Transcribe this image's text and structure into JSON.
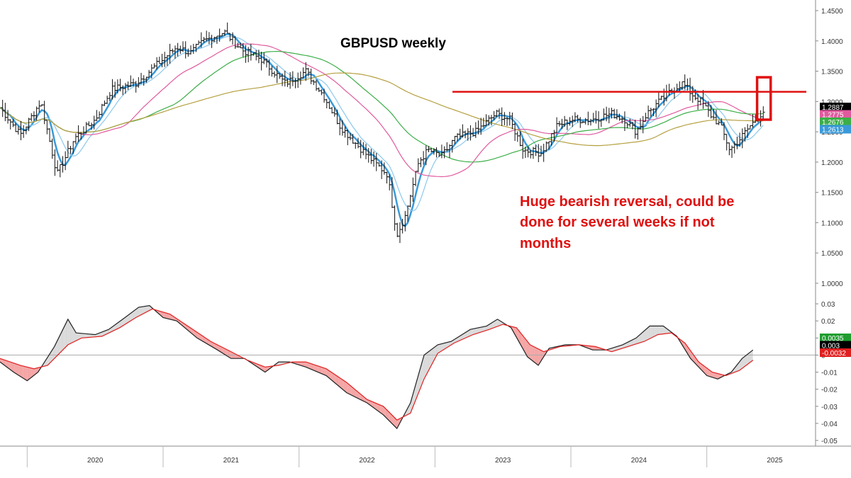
{
  "chart_data": [
    {
      "type": "ohlc",
      "title": "GBPUSD weekly",
      "annotation": {
        "lines": [
          "Huge bearish reversal, could be",
          "done for several weeks if not",
          "months"
        ],
        "color": "#e01010"
      },
      "ylim": [
        1.0,
        1.45
      ],
      "y_ticks": [
        "1.4500",
        "1.4000",
        "1.3500",
        "1.3000",
        "1.2500",
        "1.2000",
        "1.1500",
        "1.1000",
        "1.0500",
        "1.0000"
      ],
      "x_labels": [
        "2020",
        "2021",
        "2022",
        "2023",
        "2024",
        "2025"
      ],
      "price_path": [
        [
          2019.8,
          1.29
        ],
        [
          2019.95,
          1.245
        ],
        [
          2020.1,
          1.3
        ],
        [
          2020.22,
          1.18
        ],
        [
          2020.35,
          1.24
        ],
        [
          2020.5,
          1.27
        ],
        [
          2020.62,
          1.32
        ],
        [
          2020.8,
          1.33
        ],
        [
          2020.95,
          1.36
        ],
        [
          2021.1,
          1.39
        ],
        [
          2021.2,
          1.38
        ],
        [
          2021.3,
          1.4
        ],
        [
          2021.45,
          1.415
        ],
        [
          2021.58,
          1.385
        ],
        [
          2021.72,
          1.37
        ],
        [
          2021.9,
          1.33
        ],
        [
          2022.05,
          1.35
        ],
        [
          2022.18,
          1.31
        ],
        [
          2022.3,
          1.26
        ],
        [
          2022.42,
          1.23
        ],
        [
          2022.55,
          1.2
        ],
        [
          2022.65,
          1.18
        ],
        [
          2022.72,
          1.08
        ],
        [
          2022.78,
          1.11
        ],
        [
          2022.88,
          1.2
        ],
        [
          2022.95,
          1.22
        ],
        [
          2023.05,
          1.21
        ],
        [
          2023.15,
          1.24
        ],
        [
          2023.3,
          1.25
        ],
        [
          2023.45,
          1.28
        ],
        [
          2023.55,
          1.27
        ],
        [
          2023.65,
          1.22
        ],
        [
          2023.78,
          1.215
        ],
        [
          2023.9,
          1.26
        ],
        [
          2024.0,
          1.27
        ],
        [
          2024.15,
          1.27
        ],
        [
          2024.3,
          1.28
        ],
        [
          2024.4,
          1.27
        ],
        [
          2024.48,
          1.25
        ],
        [
          2024.56,
          1.28
        ],
        [
          2024.65,
          1.3
        ],
        [
          2024.75,
          1.32
        ],
        [
          2024.82,
          1.33
        ],
        [
          2024.9,
          1.31
        ],
        [
          2024.96,
          1.3
        ],
        [
          2025.02,
          1.28
        ],
        [
          2025.1,
          1.26
        ],
        [
          2025.17,
          1.22
        ],
        [
          2025.25,
          1.24
        ],
        [
          2025.32,
          1.26
        ],
        [
          2025.42,
          1.285
        ]
      ],
      "resistance_level": 1.316,
      "highlight_box": {
        "x_from": 2025.37,
        "x_to": 2025.47,
        "y_from": 1.27,
        "y_to": 1.34
      },
      "moving_averages": [
        {
          "color": "#3a9ad9",
          "period_weeks": 5
        },
        {
          "color": "#8cc8ec",
          "period_weeks": 10
        },
        {
          "color": "#e05a9e",
          "period_weeks": 30
        },
        {
          "color": "#3cae48",
          "period_weeks": 50
        },
        {
          "color": "#b5a040",
          "period_weeks": 100
        }
      ],
      "price_badges": [
        {
          "text": "1.2887",
          "bg": "#000000",
          "fg": "#ffffff"
        },
        {
          "text": "1.2775",
          "bg": "#e05a9e",
          "fg": "#ffffff"
        },
        {
          "text": "1.2676",
          "bg": "#3cae48",
          "fg": "#ffffff"
        },
        {
          "text": "1.2613",
          "bg": "#3a9ad9",
          "fg": "#ffffff"
        }
      ]
    },
    {
      "type": "line",
      "ylim": [
        -0.05,
        0.035
      ],
      "y_ticks": [
        "0.03",
        "0.02",
        "0.01",
        "0",
        "-0.01",
        "-0.02",
        "-0.03",
        "-0.04",
        "-0.05"
      ],
      "zero_line": true,
      "series": [
        {
          "color": "#222222",
          "values": [
            [
              2019.8,
              -0.004
            ],
            [
              2019.9,
              -0.01
            ],
            [
              2020.0,
              -0.015
            ],
            [
              2020.08,
              -0.01
            ],
            [
              2020.2,
              0.005
            ],
            [
              2020.3,
              0.021
            ],
            [
              2020.36,
              0.013
            ],
            [
              2020.5,
              0.012
            ],
            [
              2020.6,
              0.015
            ],
            [
              2020.72,
              0.022
            ],
            [
              2020.82,
              0.028
            ],
            [
              2020.9,
              0.029
            ],
            [
              2021.0,
              0.022
            ],
            [
              2021.1,
              0.02
            ],
            [
              2021.25,
              0.01
            ],
            [
              2021.4,
              0.003
            ],
            [
              2021.5,
              -0.002
            ],
            [
              2021.6,
              -0.002
            ],
            [
              2021.75,
              -0.01
            ],
            [
              2021.85,
              -0.004
            ],
            [
              2021.93,
              -0.004
            ],
            [
              2022.05,
              -0.007
            ],
            [
              2022.2,
              -0.012
            ],
            [
              2022.35,
              -0.022
            ],
            [
              2022.5,
              -0.028
            ],
            [
              2022.62,
              -0.035
            ],
            [
              2022.72,
              -0.043
            ],
            [
              2022.82,
              -0.028
            ],
            [
              2022.92,
              0.0
            ],
            [
              2023.02,
              0.006
            ],
            [
              2023.12,
              0.008
            ],
            [
              2023.26,
              0.015
            ],
            [
              2023.38,
              0.017
            ],
            [
              2023.46,
              0.021
            ],
            [
              2023.56,
              0.016
            ],
            [
              2023.68,
              -0.001
            ],
            [
              2023.76,
              -0.006
            ],
            [
              2023.84,
              0.004
            ],
            [
              2023.96,
              0.006
            ],
            [
              2024.06,
              0.006
            ],
            [
              2024.16,
              0.003
            ],
            [
              2024.26,
              0.003
            ],
            [
              2024.38,
              0.006
            ],
            [
              2024.48,
              0.01
            ],
            [
              2024.58,
              0.017
            ],
            [
              2024.68,
              0.017
            ],
            [
              2024.78,
              0.011
            ],
            [
              2024.88,
              -0.002
            ],
            [
              2025.0,
              -0.012
            ],
            [
              2025.08,
              -0.014
            ],
            [
              2025.18,
              -0.01
            ],
            [
              2025.26,
              -0.002
            ],
            [
              2025.34,
              0.003
            ]
          ]
        },
        {
          "color": "#e02020",
          "values": [
            [
              2019.8,
              -0.002
            ],
            [
              2019.95,
              -0.006
            ],
            [
              2020.05,
              -0.008
            ],
            [
              2020.15,
              -0.006
            ],
            [
              2020.3,
              0.006
            ],
            [
              2020.4,
              0.01
            ],
            [
              2020.55,
              0.011
            ],
            [
              2020.68,
              0.016
            ],
            [
              2020.8,
              0.022
            ],
            [
              2020.92,
              0.027
            ],
            [
              2021.05,
              0.024
            ],
            [
              2021.2,
              0.016
            ],
            [
              2021.35,
              0.008
            ],
            [
              2021.5,
              0.002
            ],
            [
              2021.62,
              -0.003
            ],
            [
              2021.75,
              -0.007
            ],
            [
              2021.85,
              -0.006
            ],
            [
              2021.95,
              -0.004
            ],
            [
              2022.05,
              -0.004
            ],
            [
              2022.2,
              -0.008
            ],
            [
              2022.35,
              -0.016
            ],
            [
              2022.5,
              -0.026
            ],
            [
              2022.62,
              -0.03
            ],
            [
              2022.72,
              -0.038
            ],
            [
              2022.82,
              -0.034
            ],
            [
              2022.92,
              -0.014
            ],
            [
              2023.02,
              0.001
            ],
            [
              2023.14,
              0.007
            ],
            [
              2023.28,
              0.012
            ],
            [
              2023.4,
              0.015
            ],
            [
              2023.5,
              0.018
            ],
            [
              2023.6,
              0.016
            ],
            [
              2023.7,
              0.006
            ],
            [
              2023.8,
              0.002
            ],
            [
              2023.92,
              0.005
            ],
            [
              2024.06,
              0.006
            ],
            [
              2024.18,
              0.005
            ],
            [
              2024.3,
              0.002
            ],
            [
              2024.42,
              0.005
            ],
            [
              2024.54,
              0.008
            ],
            [
              2024.64,
              0.012
            ],
            [
              2024.74,
              0.013
            ],
            [
              2024.84,
              0.007
            ],
            [
              2024.94,
              -0.004
            ],
            [
              2025.04,
              -0.01
            ],
            [
              2025.14,
              -0.012
            ],
            [
              2025.24,
              -0.009
            ],
            [
              2025.34,
              -0.003
            ]
          ]
        }
      ],
      "value_badges": [
        {
          "text": "0.0035",
          "bg": "#1f9d2f",
          "fg": "#ffffff"
        },
        {
          "text": "0.003",
          "bg": "#000000",
          "fg": "#ffffff"
        },
        {
          "text": "-0.0032",
          "bg": "#e02020",
          "fg": "#ffffff"
        }
      ]
    }
  ]
}
